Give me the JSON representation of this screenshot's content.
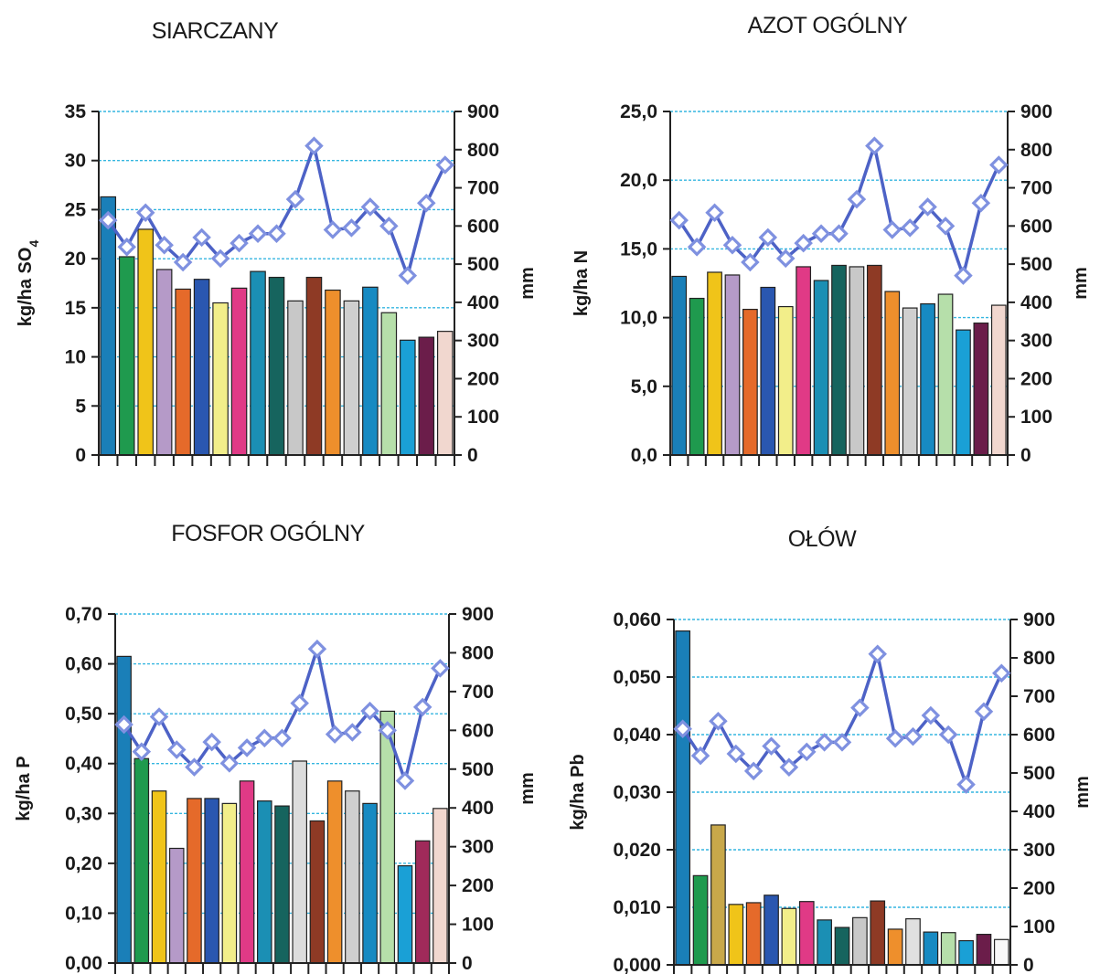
{
  "chart_data": [
    {
      "type": "bar",
      "title": "SIARCZANY",
      "ylabel": "kg/ha SO",
      "ylabel_sub": "4",
      "y2label": "mm",
      "ylim": [
        0,
        35
      ],
      "y2lim": [
        0,
        900
      ],
      "yticks": [
        "0",
        "5",
        "10",
        "15",
        "20",
        "25",
        "30",
        "35"
      ],
      "y2ticks": [
        "0",
        "100",
        "200",
        "300",
        "400",
        "500",
        "600",
        "700",
        "800",
        "900"
      ],
      "grid": true,
      "series": [
        {
          "type": "bar",
          "values": [
            26.3,
            20.2,
            23.0,
            18.9,
            16.9,
            17.9,
            15.5,
            17.0,
            18.7,
            18.1,
            15.7,
            18.1,
            16.8,
            15.7,
            17.1,
            14.5,
            11.7,
            12.0,
            12.6
          ]
        },
        {
          "type": "line",
          "axis": "right",
          "values": [
            615,
            545,
            635,
            550,
            505,
            570,
            515,
            555,
            580,
            580,
            670,
            810,
            590,
            595,
            650,
            600,
            470,
            660,
            760
          ]
        }
      ]
    },
    {
      "type": "bar",
      "title": "AZOT OGÓLNY",
      "ylabel": "kg/ha N",
      "y2label": "mm",
      "ylim": [
        0,
        25
      ],
      "y2lim": [
        0,
        900
      ],
      "yticks": [
        "0,0",
        "5,0",
        "10,0",
        "15,0",
        "20,0",
        "25,0"
      ],
      "y2ticks": [
        "0",
        "100",
        "200",
        "300",
        "400",
        "500",
        "600",
        "700",
        "800",
        "900"
      ],
      "grid": true,
      "series": [
        {
          "type": "bar",
          "values": [
            13.0,
            11.4,
            13.3,
            13.1,
            10.6,
            12.2,
            10.8,
            13.7,
            12.7,
            13.8,
            13.7,
            13.8,
            11.9,
            10.7,
            11.0,
            11.7,
            9.1,
            9.6,
            10.9
          ]
        },
        {
          "type": "line",
          "axis": "right",
          "values": [
            615,
            545,
            635,
            550,
            505,
            570,
            515,
            555,
            580,
            580,
            670,
            810,
            590,
            595,
            650,
            600,
            470,
            660,
            760
          ]
        }
      ]
    },
    {
      "type": "bar",
      "title": "FOSFOR OGÓLNY",
      "ylabel": "kg/ha P",
      "y2label": "mm",
      "ylim": [
        0,
        0.7
      ],
      "y2lim": [
        0,
        900
      ],
      "yticks": [
        "0,00",
        "0,10",
        "0,20",
        "0,30",
        "0,40",
        "0,50",
        "0,60",
        "0,70"
      ],
      "y2ticks": [
        "0",
        "100",
        "200",
        "300",
        "400",
        "500",
        "600",
        "700",
        "800",
        "900"
      ],
      "grid": true,
      "series": [
        {
          "type": "bar",
          "values": [
            0.615,
            0.41,
            0.345,
            0.23,
            0.33,
            0.33,
            0.32,
            0.365,
            0.325,
            0.315,
            0.405,
            0.285,
            0.365,
            0.345,
            0.32,
            0.505,
            0.195,
            0.245,
            0.31
          ]
        },
        {
          "type": "line",
          "axis": "right",
          "values": [
            615,
            545,
            635,
            550,
            505,
            570,
            515,
            555,
            580,
            580,
            670,
            810,
            590,
            595,
            650,
            600,
            470,
            660,
            760
          ]
        }
      ]
    },
    {
      "type": "bar",
      "title": "OŁÓW",
      "ylabel": "kg/ha Pb",
      "y2label": "mm",
      "ylim": [
        0,
        0.06
      ],
      "y2lim": [
        0,
        900
      ],
      "yticks": [
        "0,000",
        "0,010",
        "0,020",
        "0,030",
        "0,040",
        "0,050",
        "0,060"
      ],
      "y2ticks": [
        "0",
        "100",
        "200",
        "300",
        "400",
        "500",
        "600",
        "700",
        "800",
        "900"
      ],
      "grid": true,
      "series": [
        {
          "type": "bar",
          "values": [
            0.058,
            0.0155,
            0.0243,
            0.0105,
            0.0108,
            0.0121,
            0.0098,
            0.011,
            0.0078,
            0.0065,
            0.0082,
            0.0111,
            0.0062,
            0.008,
            0.0057,
            0.0056,
            0.0042,
            0.0053,
            0.0044
          ]
        },
        {
          "type": "line",
          "axis": "right",
          "values": [
            615,
            545,
            635,
            550,
            505,
            570,
            515,
            555,
            580,
            580,
            670,
            810,
            590,
            595,
            650,
            600,
            470,
            660,
            760
          ]
        }
      ]
    }
  ],
  "colors": {
    "bars": [
      "#1a7fb8",
      "#1f9a4e",
      "#f0c419",
      "#b59ac8",
      "#e56a2a",
      "#2a57b0",
      "#f2ee8a",
      "#e03a86",
      "#1b8fb4",
      "#16645e",
      "#c8c8c8",
      "#8e3a25",
      "#ee8f2c",
      "#cfcfcf",
      "#178ac2",
      "#b6dfaa",
      "#1aa0d6",
      "#6b1d4a",
      "#f1d7cf"
    ],
    "line": "#4d62c6",
    "marker_edge": "#7f91e0",
    "grid": "#35b6e0"
  },
  "colors_per_chart": [
    null,
    [
      "#1a7fb8",
      "#1f9a4e",
      "#f0c419",
      "#b59ac8",
      "#e56a2a",
      "#2a57b0",
      "#f2ee8a",
      "#e03a86",
      "#1b8fb4",
      "#16645e",
      "#c8c8c8",
      "#8e3a25",
      "#ee8f2c",
      "#cfcfcf",
      "#178ac2",
      "#b6dfaa",
      "#1aa0d6",
      "#6b1d4a",
      "#f1d7cf"
    ],
    [
      "#1a7fb8",
      "#1f9a4e",
      "#f0c419",
      "#b59ac8",
      "#e56a2a",
      "#2a57b0",
      "#f2ee8a",
      "#e03a86",
      "#1b8fb4",
      "#16645e",
      "#dcdcdc",
      "#8e3a25",
      "#ee8f2c",
      "#cfcfcf",
      "#178ac2",
      "#b6dfaa",
      "#1aa0d6",
      "#a02a5a",
      "#f1d7cf"
    ],
    [
      "#1a7fb8",
      "#1f9a4e",
      "#c8a84a",
      "#f0c419",
      "#e56a2a",
      "#2a57b0",
      "#f2ee8a",
      "#e03a86",
      "#1b8fb4",
      "#16645e",
      "#c8c8c8",
      "#8e3a25",
      "#ee8f2c",
      "#e0e0e0",
      "#178ac2",
      "#b6dfaa",
      "#1aa0d6",
      "#6b1d4a",
      "#f8f8f8"
    ]
  ]
}
